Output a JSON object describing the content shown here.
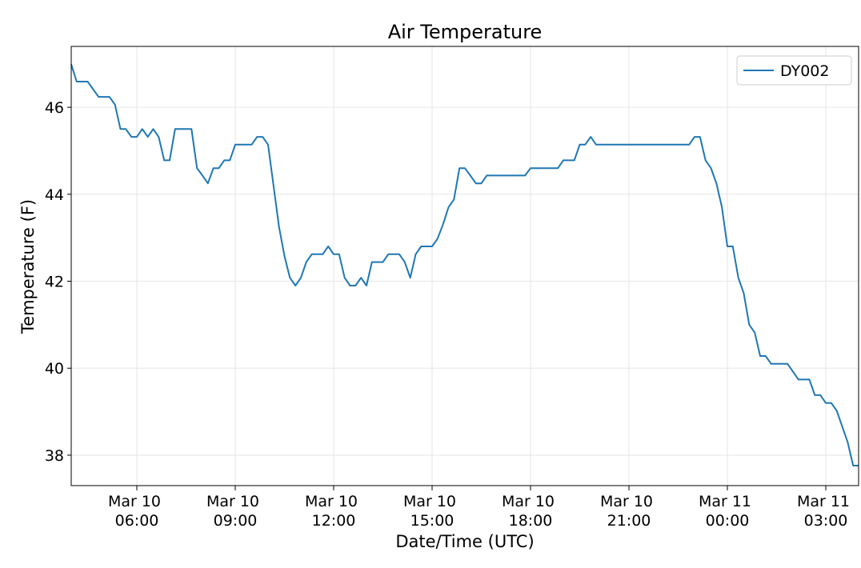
{
  "chart_data": {
    "type": "line",
    "title": "Air Temperature",
    "x_label": "Date/Time (UTC)",
    "y_label": "Temperature (F)",
    "x": [
      "Mar 10 04:00",
      "Mar 10 04:10",
      "Mar 10 04:30",
      "Mar 10 04:50",
      "Mar 10 05:10",
      "Mar 10 05:20",
      "Mar 10 05:30",
      "Mar 10 05:40",
      "Mar 10 05:50",
      "Mar 10 06:00",
      "Mar 10 06:10",
      "Mar 10 06:20",
      "Mar 10 06:30",
      "Mar 10 06:40",
      "Mar 10 06:50",
      "Mar 10 07:00",
      "Mar 10 07:10",
      "Mar 10 07:40",
      "Mar 10 07:50",
      "Mar 10 08:00",
      "Mar 10 08:10",
      "Mar 10 08:20",
      "Mar 10 08:30",
      "Mar 10 08:40",
      "Mar 10 08:50",
      "Mar 10 09:00",
      "Mar 10 09:30",
      "Mar 10 09:40",
      "Mar 10 09:50",
      "Mar 10 10:00",
      "Mar 10 10:10",
      "Mar 10 10:20",
      "Mar 10 10:30",
      "Mar 10 10:40",
      "Mar 10 10:50",
      "Mar 10 11:00",
      "Mar 10 11:10",
      "Mar 10 11:20",
      "Mar 10 11:40",
      "Mar 10 11:50",
      "Mar 10 12:00",
      "Mar 10 12:10",
      "Mar 10 12:20",
      "Mar 10 12:30",
      "Mar 10 12:40",
      "Mar 10 12:50",
      "Mar 10 13:00",
      "Mar 10 13:10",
      "Mar 10 13:30",
      "Mar 10 13:40",
      "Mar 10 14:00",
      "Mar 10 14:10",
      "Mar 10 14:20",
      "Mar 10 14:30",
      "Mar 10 14:40",
      "Mar 10 15:00",
      "Mar 10 15:10",
      "Mar 10 15:20",
      "Mar 10 15:30",
      "Mar 10 15:40",
      "Mar 10 15:50",
      "Mar 10 16:00",
      "Mar 10 16:10",
      "Mar 10 16:20",
      "Mar 10 16:30",
      "Mar 10 16:40",
      "Mar 10 17:50",
      "Mar 10 18:00",
      "Mar 10 18:50",
      "Mar 10 19:00",
      "Mar 10 19:20",
      "Mar 10 19:30",
      "Mar 10 19:40",
      "Mar 10 19:50",
      "Mar 10 20:00",
      "Mar 10 22:50",
      "Mar 10 23:00",
      "Mar 10 23:10",
      "Mar 10 23:20",
      "Mar 10 23:30",
      "Mar 10 23:40",
      "Mar 10 23:50",
      "Mar 11 00:00",
      "Mar 11 00:10",
      "Mar 11 00:20",
      "Mar 11 00:30",
      "Mar 11 00:40",
      "Mar 11 00:50",
      "Mar 11 01:00",
      "Mar 11 01:10",
      "Mar 11 01:20",
      "Mar 11 01:50",
      "Mar 11 02:00",
      "Mar 11 02:10",
      "Mar 11 02:30",
      "Mar 11 02:40",
      "Mar 11 02:50",
      "Mar 11 03:00",
      "Mar 11 03:10",
      "Mar 11 03:20",
      "Mar 11 03:30",
      "Mar 11 03:40",
      "Mar 11 03:50",
      "Mar 11 04:00"
    ],
    "series": [
      {
        "name": "DY002",
        "color": "#1f77b4",
        "values": [
          46.99,
          46.59,
          46.59,
          46.24,
          46.24,
          46.06,
          45.5,
          45.5,
          45.32,
          45.32,
          45.5,
          45.32,
          45.5,
          45.32,
          44.78,
          44.78,
          45.5,
          45.5,
          44.6,
          44.43,
          44.25,
          44.6,
          44.6,
          44.78,
          44.78,
          45.14,
          45.14,
          45.32,
          45.32,
          45.14,
          44.2,
          43.25,
          42.58,
          42.08,
          41.9,
          42.08,
          42.44,
          42.62,
          42.62,
          42.8,
          42.62,
          42.62,
          42.08,
          41.9,
          41.9,
          42.08,
          41.9,
          42.44,
          42.44,
          42.62,
          42.62,
          42.44,
          42.08,
          42.62,
          42.8,
          42.8,
          42.98,
          43.31,
          43.7,
          43.88,
          44.6,
          44.6,
          44.43,
          44.25,
          44.25,
          44.43,
          44.43,
          44.6,
          44.6,
          44.78,
          44.78,
          45.14,
          45.14,
          45.32,
          45.14,
          45.14,
          45.32,
          45.32,
          44.78,
          44.6,
          44.25,
          43.7,
          42.8,
          42.8,
          42.08,
          41.72,
          41.0,
          40.82,
          40.28,
          40.28,
          40.1,
          40.1,
          39.92,
          39.74,
          39.74,
          39.38,
          39.38,
          39.2,
          39.2,
          39.02,
          38.66,
          38.3,
          37.76,
          37.76
        ]
      }
    ],
    "xlim": [
      "Mar 10 04:00",
      "Mar 11 04:00"
    ],
    "xticks": [
      "Mar 10 06:00",
      "Mar 10 09:00",
      "Mar 10 12:00",
      "Mar 10 15:00",
      "Mar 10 18:00",
      "Mar 10 21:00",
      "Mar 11 00:00",
      "Mar 11 03:00"
    ],
    "ylim": [
      37.3,
      47.4
    ],
    "yticks": [
      38,
      40,
      42,
      44,
      46
    ],
    "grid": true,
    "legend": "upper right"
  }
}
